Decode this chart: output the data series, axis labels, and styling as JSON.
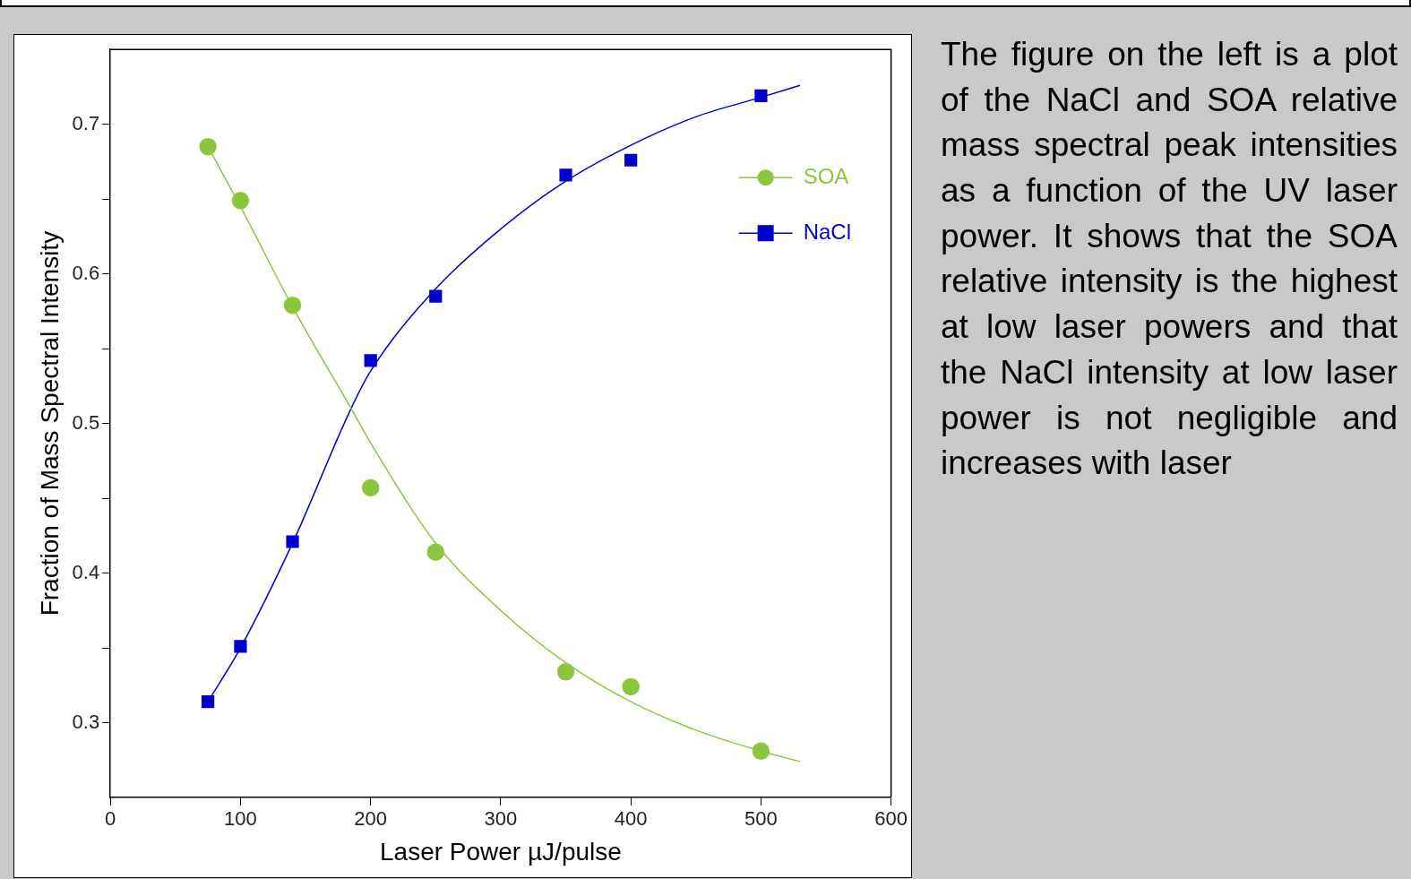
{
  "chart_data": {
    "type": "scatter",
    "xlabel": "Laser Power µJ/pulse",
    "ylabel": "Fraction of Mass Spectral Intensity",
    "xlim": [
      0,
      600
    ],
    "xticks": [
      0,
      100,
      200,
      300,
      400,
      500,
      600
    ],
    "ylim": [
      0.25,
      0.75
    ],
    "yticks": [
      {
        "value": 0.3,
        "label": "0.3"
      },
      {
        "value": 0.35,
        "label": null
      },
      {
        "value": 0.4,
        "label": "0.4"
      },
      {
        "value": 0.45,
        "label": null
      },
      {
        "value": 0.5,
        "label": "0.5"
      },
      {
        "value": 0.55,
        "label": null
      },
      {
        "value": 0.6,
        "label": "0.6"
      },
      {
        "value": 0.65,
        "label": null
      },
      {
        "value": 0.7,
        "label": "0.7"
      }
    ],
    "grid": false,
    "legend": "top right",
    "series": [
      {
        "name": "SOA",
        "type": "scatter",
        "marker": "circle",
        "color": "#8cc63f",
        "x": [
          75,
          100,
          140,
          200,
          250,
          350,
          400,
          500
        ],
        "values": [
          0.685,
          0.649,
          0.579,
          0.457,
          0.414,
          0.334,
          0.324,
          0.281
        ]
      },
      {
        "name": "NaCl",
        "type": "scatter",
        "marker": "square",
        "color": "#0000cc",
        "x": [
          75,
          100,
          140,
          200,
          250,
          350,
          400,
          500
        ],
        "values": [
          0.314,
          0.351,
          0.421,
          0.542,
          0.585,
          0.666,
          0.676,
          0.719
        ]
      },
      {
        "type": "line",
        "marker": "none",
        "color": "#8cc63f",
        "x": [
          75,
          100,
          140,
          185,
          200,
          250,
          300,
          350,
          400,
          450,
          500,
          530
        ],
        "values": [
          0.685,
          0.645,
          0.578,
          0.51,
          0.487,
          0.42,
          0.375,
          0.34,
          0.314,
          0.295,
          0.281,
          0.274
        ]
      },
      {
        "type": "line",
        "marker": "none",
        "color": "#0000cc",
        "x": [
          75,
          100,
          140,
          185,
          200,
          250,
          300,
          350,
          400,
          450,
          500,
          530
        ],
        "values": [
          0.314,
          0.35,
          0.42,
          0.51,
          0.535,
          0.59,
          0.63,
          0.662,
          0.686,
          0.705,
          0.718,
          0.726
        ]
      }
    ],
    "annotations": [
      "The figure on the left is a plot of the NaCl and SOA relative mass spectral peak intensities as a function of the UV laser power. It shows that the SOA relative intensity is the highest at low laser powers and that the NaCl intensity at low laser power is not negligible and increases with laser"
    ]
  }
}
